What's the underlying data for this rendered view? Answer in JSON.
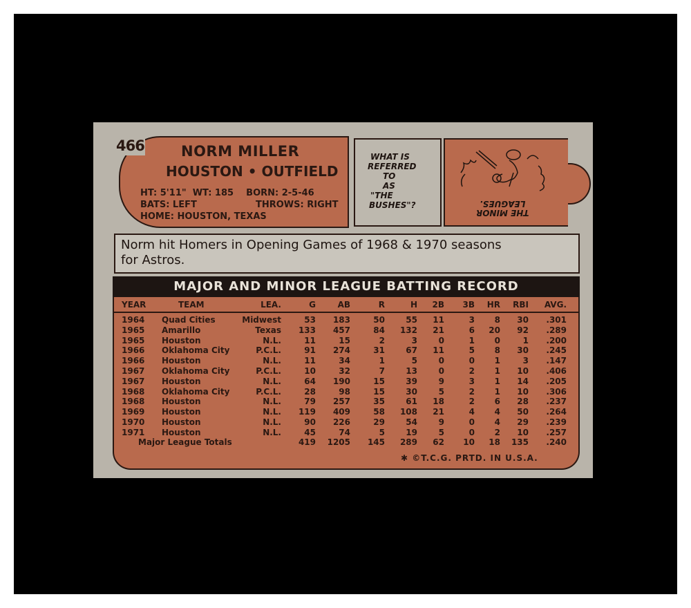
{
  "card_number": "466",
  "player": {
    "name": "NORM MILLER",
    "team_position": "HOUSTON • OUTFIELD",
    "line1": "HT: 5'11\"  WT: 185    BORN: 2-5-46",
    "line2_left": "BATS: LEFT",
    "line2_right": "THROWS: RIGHT",
    "line3": "HOME: HOUSTON, TEXAS"
  },
  "quiz": {
    "question_lines": [
      "WHAT IS",
      "REFERRED",
      "TO",
      "AS",
      "\"THE",
      "BUSHES\"?"
    ],
    "answer_lines": [
      "THE MINOR",
      "LEAGUES."
    ]
  },
  "bio": {
    "line1": "Norm hit Homers in Opening Games of 1968 & 1970 seasons",
    "line2": "for Astros."
  },
  "record_title": "MAJOR AND MINOR LEAGUE BATTING RECORD",
  "columns": [
    "YEAR",
    "TEAM",
    "LEA.",
    "G",
    "AB",
    "R",
    "H",
    "2B",
    "3B",
    "HR",
    "RBI",
    "AVG."
  ],
  "rows": [
    [
      "1964",
      "Quad Cities",
      "Midwest",
      "53",
      "183",
      "50",
      "55",
      "11",
      "3",
      "8",
      "30",
      ".301"
    ],
    [
      "1965",
      "Amarillo",
      "Texas",
      "133",
      "457",
      "84",
      "132",
      "21",
      "6",
      "20",
      "92",
      ".289"
    ],
    [
      "1965",
      "Houston",
      "N.L.",
      "11",
      "15",
      "2",
      "3",
      "0",
      "1",
      "0",
      "1",
      ".200"
    ],
    [
      "1966",
      "Oklahoma City",
      "P.C.L.",
      "91",
      "274",
      "31",
      "67",
      "11",
      "5",
      "8",
      "30",
      ".245"
    ],
    [
      "1966",
      "Houston",
      "N.L.",
      "11",
      "34",
      "1",
      "5",
      "0",
      "0",
      "1",
      "3",
      ".147"
    ],
    [
      "1967",
      "Oklahoma City",
      "P.C.L.",
      "10",
      "32",
      "7",
      "13",
      "0",
      "2",
      "1",
      "10",
      ".406"
    ],
    [
      "1967",
      "Houston",
      "N.L.",
      "64",
      "190",
      "15",
      "39",
      "9",
      "3",
      "1",
      "14",
      ".205"
    ],
    [
      "1968",
      "Oklahoma City",
      "P.C.L.",
      "28",
      "98",
      "15",
      "30",
      "5",
      "2",
      "1",
      "10",
      ".306"
    ],
    [
      "1968",
      "Houston",
      "N.L.",
      "79",
      "257",
      "35",
      "61",
      "18",
      "2",
      "6",
      "28",
      ".237"
    ],
    [
      "1969",
      "Houston",
      "N.L.",
      "119",
      "409",
      "58",
      "108",
      "21",
      "4",
      "4",
      "50",
      ".264"
    ],
    [
      "1970",
      "Houston",
      "N.L.",
      "90",
      "226",
      "29",
      "54",
      "9",
      "0",
      "4",
      "29",
      ".239"
    ],
    [
      "1971",
      "Houston",
      "N.L.",
      "45",
      "74",
      "5",
      "19",
      "5",
      "0",
      "2",
      "10",
      ".257"
    ]
  ],
  "totals": [
    "Major League Totals",
    "419",
    "1205",
    "145",
    "289",
    "62",
    "10",
    "18",
    "135",
    ".240"
  ],
  "footer": "✱  ©T.C.G. PRTD. IN U.S.A.",
  "colors": {
    "card_gray": "#b9b4aa",
    "panel_orange": "#b96a4d",
    "ink": "#2a1812",
    "frame": "#000000"
  }
}
